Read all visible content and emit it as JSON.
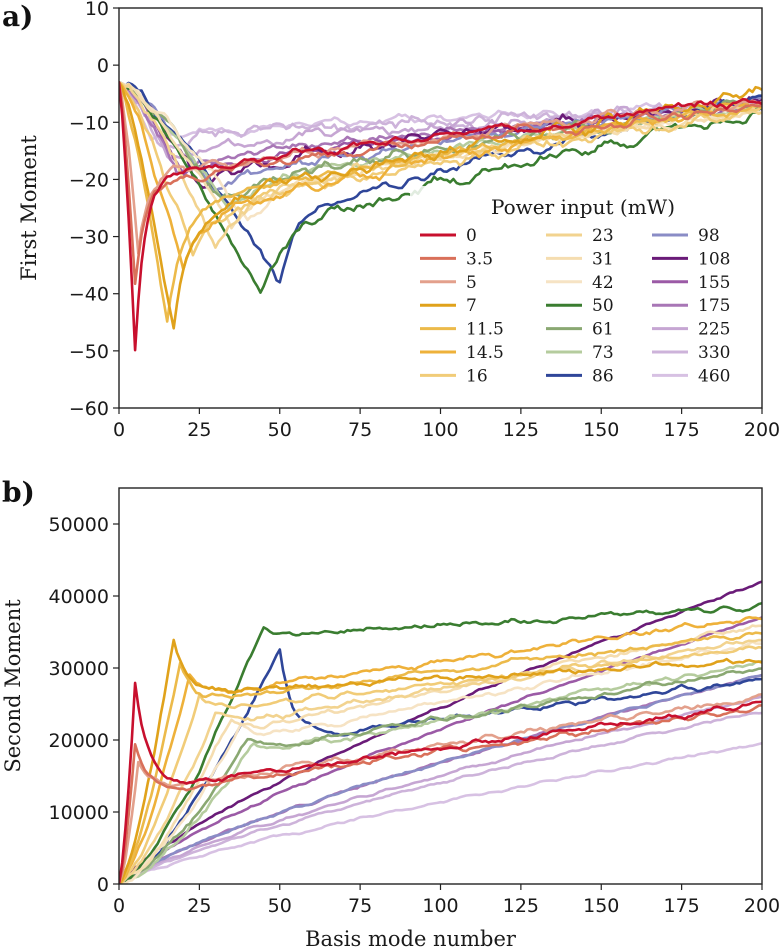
{
  "legend": {
    "title": "Power input (mW)",
    "entries": [
      "0",
      "3.5",
      "5",
      "7",
      "11.5",
      "14.5",
      "16",
      "23",
      "31",
      "42",
      "50",
      "61",
      "73",
      "86",
      "98",
      "108",
      "155",
      "175",
      "225",
      "330",
      "460"
    ],
    "colors": [
      "#c8102e",
      "#d9705a",
      "#e3a08c",
      "#e0a21b",
      "#ecba4a",
      "#eeb13a",
      "#f1cc78",
      "#f2d38f",
      "#f5ddb0",
      "#f6e3c4",
      "#3a7d30",
      "#8aa872",
      "#b5cc9e",
      "#2f4699",
      "#8a8cc6",
      "#6a1b78",
      "#9b5aa6",
      "#a876b6",
      "#c6a6d3",
      "#cdb3da",
      "#d7c1e3"
    ]
  },
  "chart_data": [
    {
      "type": "line",
      "panel_label": "a)",
      "xlabel": "",
      "ylabel": "First Moment",
      "xlim": [
        0,
        200
      ],
      "ylim": [
        -60,
        10
      ],
      "xticks": [
        0,
        25,
        50,
        75,
        100,
        125,
        150,
        175,
        200
      ],
      "yticks": [
        -60,
        -50,
        -40,
        -30,
        -20,
        -10,
        0,
        10
      ],
      "grid": false,
      "legend_position": "lower-right",
      "series": [
        {
          "name": "0",
          "min_at": 5,
          "min_value": -50,
          "valley_width": 3,
          "recover_to": -20,
          "end_value": -6
        },
        {
          "name": "3.5",
          "min_at": 5,
          "min_value": -38,
          "valley_width": 3,
          "recover_to": -21,
          "end_value": -7
        },
        {
          "name": "5",
          "min_at": 6,
          "min_value": -34,
          "valley_width": 3,
          "recover_to": -20,
          "end_value": -6
        },
        {
          "name": "7",
          "min_at": 17,
          "min_value": -47,
          "valley_width": 5,
          "recover_to": -26,
          "end_value": -5
        },
        {
          "name": "11.5",
          "min_at": 15,
          "min_value": -45,
          "valley_width": 5,
          "recover_to": -25,
          "end_value": -7
        },
        {
          "name": "14.5",
          "min_at": 20,
          "min_value": -36,
          "valley_width": 6,
          "recover_to": -27,
          "end_value": -6
        },
        {
          "name": "16",
          "min_at": 23,
          "min_value": -33,
          "valley_width": 7,
          "recover_to": -26,
          "end_value": -8
        },
        {
          "name": "23",
          "min_at": 30,
          "min_value": -31,
          "valley_width": 9,
          "recover_to": -24,
          "end_value": -7
        },
        {
          "name": "31",
          "min_at": 35,
          "min_value": -28,
          "valley_width": 10,
          "recover_to": -23,
          "end_value": -8
        },
        {
          "name": "42",
          "min_at": 40,
          "min_value": -27,
          "valley_width": 11,
          "recover_to": -22,
          "end_value": -8
        },
        {
          "name": "50",
          "min_at": 44,
          "min_value": -41,
          "valley_width": 7,
          "recover_to": -30,
          "end_value": -8
        },
        {
          "name": "61",
          "min_at": 32,
          "min_value": -24,
          "valley_width": 10,
          "recover_to": -21,
          "end_value": -7
        },
        {
          "name": "73",
          "min_at": 34,
          "min_value": -25,
          "valley_width": 11,
          "recover_to": -21,
          "end_value": -7
        },
        {
          "name": "86",
          "min_at": 50,
          "min_value": -38,
          "valley_width": 5,
          "recover_to": -27,
          "end_value": -6
        },
        {
          "name": "98",
          "min_at": 30,
          "min_value": -22,
          "valley_width": 10,
          "recover_to": -20,
          "end_value": -6
        },
        {
          "name": "108",
          "min_at": 25,
          "min_value": -21,
          "valley_width": 12,
          "recover_to": -19,
          "end_value": -6
        },
        {
          "name": "155",
          "min_at": 20,
          "min_value": -19,
          "valley_width": 12,
          "recover_to": -18,
          "end_value": -7
        },
        {
          "name": "175",
          "min_at": 18,
          "min_value": -18,
          "valley_width": 12,
          "recover_to": -17,
          "end_value": -7
        },
        {
          "name": "225",
          "min_at": 15,
          "min_value": -16,
          "valley_width": 12,
          "recover_to": -15,
          "end_value": -7
        },
        {
          "name": "330",
          "min_at": 12,
          "min_value": -14,
          "valley_width": 12,
          "recover_to": -13,
          "end_value": -7
        },
        {
          "name": "460",
          "min_at": 10,
          "min_value": -13,
          "valley_width": 12,
          "recover_to": -12,
          "end_value": -7
        }
      ]
    },
    {
      "type": "line",
      "panel_label": "b)",
      "xlabel": "Basis mode number",
      "ylabel": "Second Moment",
      "xlim": [
        0,
        200
      ],
      "ylim": [
        0,
        55000
      ],
      "xticks": [
        0,
        25,
        50,
        75,
        100,
        125,
        150,
        175,
        200
      ],
      "yticks": [
        0,
        10000,
        20000,
        30000,
        40000,
        50000
      ],
      "grid": false,
      "series": [
        {
          "name": "0",
          "peak_at": 5,
          "peak_value": 28000,
          "plateau": 13000,
          "end_value": 25000
        },
        {
          "name": "3.5",
          "peak_at": 5,
          "peak_value": 19500,
          "plateau": 12500,
          "end_value": 24500
        },
        {
          "name": "5",
          "peak_at": 6,
          "peak_value": 17000,
          "plateau": 13000,
          "end_value": 26000
        },
        {
          "name": "7",
          "peak_at": 17,
          "peak_value": 34000,
          "plateau": 26500,
          "end_value": 31000
        },
        {
          "name": "11.5",
          "peak_at": 19,
          "peak_value": 30500,
          "plateau": 25000,
          "end_value": 35000
        },
        {
          "name": "14.5",
          "peak_at": 22,
          "peak_value": 29500,
          "plateau": 26000,
          "end_value": 37000
        },
        {
          "name": "16",
          "peak_at": 25,
          "peak_value": 26000,
          "plateau": 24000,
          "end_value": 33000
        },
        {
          "name": "23",
          "peak_at": 30,
          "peak_value": 24000,
          "plateau": 22000,
          "end_value": 34000
        },
        {
          "name": "31",
          "peak_at": 35,
          "peak_value": 23000,
          "plateau": 21000,
          "end_value": 36000
        },
        {
          "name": "42",
          "peak_at": 38,
          "peak_value": 22000,
          "plateau": 20000,
          "end_value": 33500
        },
        {
          "name": "50",
          "peak_at": 45,
          "peak_value": 36000,
          "plateau": 34500,
          "end_value": 38500
        },
        {
          "name": "61",
          "peak_at": 40,
          "peak_value": 20000,
          "plateau": 18500,
          "end_value": 30000
        },
        {
          "name": "73",
          "peak_at": 42,
          "peak_value": 19500,
          "plateau": 18000,
          "end_value": 31000
        },
        {
          "name": "86",
          "peak_at": 50,
          "peak_value": 32500,
          "plateau": 20000,
          "end_value": 28500
        },
        {
          "name": "98",
          "peak_at": 0,
          "peak_value": 0,
          "plateau": 0,
          "end_value": 29000
        },
        {
          "name": "108",
          "peak_at": 0,
          "peak_value": 0,
          "plateau": 0,
          "end_value": 42000
        },
        {
          "name": "155",
          "peak_at": 0,
          "peak_value": 0,
          "plateau": 0,
          "end_value": 37000
        },
        {
          "name": "175",
          "peak_at": 0,
          "peak_value": 0,
          "plateau": 0,
          "end_value": 29000
        },
        {
          "name": "225",
          "peak_at": 0,
          "peak_value": 0,
          "plateau": 0,
          "end_value": 26000
        },
        {
          "name": "330",
          "peak_at": 0,
          "peak_value": 0,
          "plateau": 0,
          "end_value": 24000
        },
        {
          "name": "460",
          "peak_at": 0,
          "peak_value": 0,
          "plateau": 0,
          "end_value": 19500
        }
      ]
    }
  ]
}
